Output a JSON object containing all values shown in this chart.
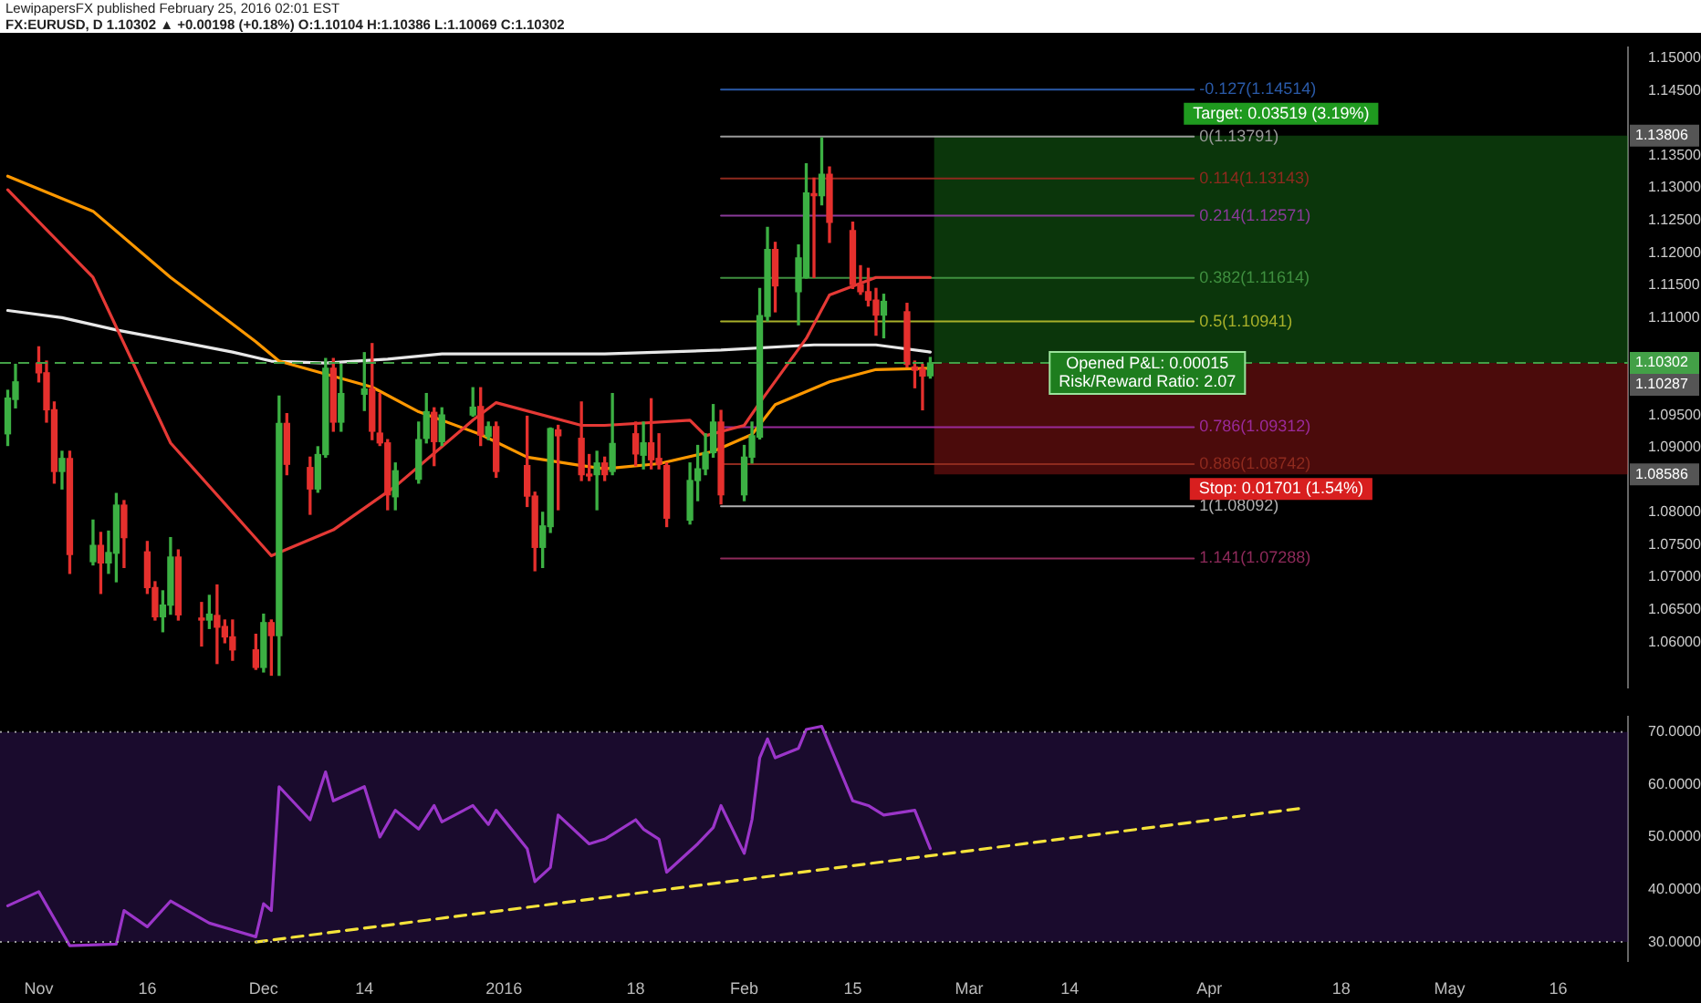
{
  "chart_data": [
    {
      "type": "candlestick",
      "title": "FX:EURUSD, D 1.10302 ▲ +0.00198 (+0.18%) O:1.10104 H:1.10386 L:1.10069 C:1.10302",
      "subtitle": "LewipapersFX published February 25, 2016 02:01 EST",
      "x": [
        "2015-10-29",
        "2015-10-30",
        "2015-11-02",
        "2015-11-03",
        "2015-11-04",
        "2015-11-05",
        "2015-11-06",
        "2015-11-09",
        "2015-11-10",
        "2015-11-11",
        "2015-11-12",
        "2015-11-13",
        "2015-11-16",
        "2015-11-17",
        "2015-11-18",
        "2015-11-19",
        "2015-11-20",
        "2015-11-23",
        "2015-11-24",
        "2015-11-25",
        "2015-11-26",
        "2015-11-27",
        "2015-11-30",
        "2015-12-01",
        "2015-12-02",
        "2015-12-03",
        "2015-12-04",
        "2015-12-07",
        "2015-12-08",
        "2015-12-09",
        "2015-12-10",
        "2015-12-11",
        "2015-12-14",
        "2015-12-15",
        "2015-12-16",
        "2015-12-17",
        "2015-12-18",
        "2015-12-21",
        "2015-12-22",
        "2015-12-23",
        "2015-12-24",
        "2015-12-28",
        "2015-12-29",
        "2015-12-30",
        "2015-12-31",
        "2016-01-04",
        "2016-01-05",
        "2016-01-06",
        "2016-01-07",
        "2016-01-08",
        "2016-01-11",
        "2016-01-12",
        "2016-01-13",
        "2016-01-14",
        "2016-01-15",
        "2016-01-18",
        "2016-01-19",
        "2016-01-20",
        "2016-01-21",
        "2016-01-22",
        "2016-01-25",
        "2016-01-26",
        "2016-01-27",
        "2016-01-28",
        "2016-01-29",
        "2016-02-01",
        "2016-02-02",
        "2016-02-03",
        "2016-02-04",
        "2016-02-05",
        "2016-02-08",
        "2016-02-09",
        "2016-02-10",
        "2016-02-11",
        "2016-02-12",
        "2016-02-15",
        "2016-02-16",
        "2016-02-17",
        "2016-02-18",
        "2016-02-19",
        "2016-02-22",
        "2016-02-23",
        "2016-02-24",
        "2016-02-25"
      ],
      "ohlc": [
        [
          1.0921,
          1.0988,
          1.0903,
          1.0976
        ],
        [
          1.0974,
          1.1028,
          1.0961,
          1.1001
        ],
        [
          1.103,
          1.1055,
          1.1001,
          1.1015
        ],
        [
          1.1015,
          1.1033,
          1.0939,
          1.0958
        ],
        [
          1.0958,
          1.097,
          1.0845,
          1.0863
        ],
        [
          1.0863,
          1.0894,
          1.0836,
          1.0883
        ],
        [
          1.0883,
          1.0894,
          1.0706,
          1.0735
        ],
        [
          1.0724,
          1.0788,
          1.0719,
          1.0749
        ],
        [
          1.0749,
          1.0769,
          1.0675,
          1.0722
        ],
        [
          1.0722,
          1.0771,
          1.0706,
          1.0738
        ],
        [
          1.0737,
          1.0829,
          1.0693,
          1.0811
        ],
        [
          1.0811,
          1.0818,
          1.0715,
          1.0761
        ],
        [
          1.0739,
          1.0755,
          1.0675,
          1.0684
        ],
        [
          1.0684,
          1.0693,
          1.0634,
          1.0639
        ],
        [
          1.0639,
          1.0679,
          1.0616,
          1.0657
        ],
        [
          1.0657,
          1.0761,
          1.0643,
          1.0731
        ],
        [
          1.0731,
          1.0742,
          1.0634,
          1.0642
        ],
        [
          1.0637,
          1.0661,
          1.0594,
          1.0634
        ],
        [
          1.0634,
          1.0672,
          1.0621,
          1.0643
        ],
        [
          1.0641,
          1.0688,
          1.0567,
          1.0623
        ],
        [
          1.0624,
          1.0634,
          1.0599,
          1.0608
        ],
        [
          1.0608,
          1.0634,
          1.0572,
          1.0588
        ],
        [
          1.0588,
          1.0612,
          1.0558,
          1.0561
        ],
        [
          1.0561,
          1.0643,
          1.0554,
          1.063
        ],
        [
          1.063,
          1.0634,
          1.0549,
          1.061
        ],
        [
          1.061,
          1.0979,
          1.0549,
          1.0937
        ],
        [
          1.0937,
          1.0952,
          1.0858,
          1.0874
        ],
        [
          1.0869,
          1.0885,
          1.0797,
          1.0836
        ],
        [
          1.0836,
          1.0901,
          1.0831,
          1.0889
        ],
        [
          1.0889,
          1.1037,
          1.0885,
          1.1022
        ],
        [
          1.1022,
          1.1037,
          1.0925,
          1.0939
        ],
        [
          1.0939,
          1.1028,
          1.0925,
          1.0983
        ],
        [
          1.0982,
          1.1046,
          1.0957,
          1.099
        ],
        [
          1.099,
          1.106,
          1.0912,
          1.0925
        ],
        [
          1.0922,
          1.0983,
          1.0903,
          1.0907
        ],
        [
          1.0907,
          1.0912,
          1.0804,
          1.0827
        ],
        [
          1.0824,
          1.0876,
          1.0804,
          1.0864
        ],
        [
          1.0851,
          1.0939,
          1.0845,
          1.0912
        ],
        [
          1.0914,
          1.0983,
          1.0907,
          1.0955
        ],
        [
          1.0954,
          1.0961,
          1.0872,
          1.0909
        ],
        [
          1.0909,
          1.0961,
          1.0903,
          1.095
        ],
        [
          1.095,
          1.0992,
          1.0948,
          1.0962
        ],
        [
          1.0963,
          1.0992,
          1.0903,
          1.0919
        ],
        [
          1.0917,
          1.0939,
          1.0912,
          1.0932
        ],
        [
          1.0932,
          1.0939,
          1.0854,
          1.0863
        ],
        [
          1.0872,
          1.0948,
          1.0809,
          1.0825
        ],
        [
          1.0825,
          1.0831,
          1.071,
          1.0746
        ],
        [
          1.0746,
          1.08,
          1.0715,
          1.0779
        ],
        [
          1.0778,
          1.093,
          1.0769,
          1.0929
        ],
        [
          1.0927,
          1.0934,
          1.0804,
          1.0918
        ],
        [
          1.0914,
          1.097,
          1.0849,
          1.0858
        ],
        [
          1.0858,
          1.0889,
          1.0849,
          1.0856
        ],
        [
          1.0858,
          1.0894,
          1.0804,
          1.0876
        ],
        [
          1.0876,
          1.0885,
          1.0849,
          1.0858
        ],
        [
          1.0863,
          1.0983,
          1.0858,
          1.0906
        ],
        [
          1.0921,
          1.0939,
          1.0872,
          1.089
        ],
        [
          1.0888,
          1.0939,
          1.0867,
          1.0907
        ],
        [
          1.0907,
          1.0975,
          1.0867,
          1.0881
        ],
        [
          1.0883,
          1.0921,
          1.0867,
          1.0874
        ],
        [
          1.0872,
          1.0876,
          1.0778,
          1.0791
        ],
        [
          1.0788,
          1.0876,
          1.0782,
          1.0849
        ],
        [
          1.0849,
          1.0903,
          1.0818,
          1.0867
        ],
        [
          1.0867,
          1.0921,
          1.0858,
          1.0892
        ],
        [
          1.0892,
          1.0966,
          1.0885,
          1.0939
        ],
        [
          1.0939,
          1.0957,
          1.0813,
          1.0827
        ],
        [
          1.0827,
          1.0903,
          1.0818,
          1.0885
        ],
        [
          1.0885,
          1.0939,
          1.0876,
          1.0918
        ],
        [
          1.0916,
          1.1145,
          1.0913,
          1.1103
        ],
        [
          1.1102,
          1.1239,
          1.1095,
          1.1205
        ],
        [
          1.1205,
          1.1216,
          1.1109,
          1.1149
        ],
        [
          1.114,
          1.1212,
          1.1089,
          1.1192
        ],
        [
          1.1162,
          1.1337,
          1.1161,
          1.1292
        ],
        [
          1.1291,
          1.1315,
          1.1162,
          1.1288
        ],
        [
          1.1288,
          1.1377,
          1.1274,
          1.1321
        ],
        [
          1.1321,
          1.1332,
          1.1216,
          1.1247
        ],
        [
          1.1234,
          1.1247,
          1.1145,
          1.1151
        ],
        [
          1.1151,
          1.118,
          1.1136,
          1.114
        ],
        [
          1.114,
          1.1176,
          1.1118,
          1.1127
        ],
        [
          1.1127,
          1.1145,
          1.1073,
          1.1104
        ],
        [
          1.1104,
          1.1136,
          1.1069,
          1.1125
        ],
        [
          1.1109,
          1.1122,
          1.1024,
          1.1028
        ],
        [
          1.1024,
          1.1033,
          1.0992,
          1.1019
        ],
        [
          1.1021,
          1.1028,
          1.0958,
          1.101
        ],
        [
          1.10104,
          1.10386,
          1.10069,
          1.10302
        ]
      ],
      "colors": [
        "#3cb043",
        "#3cb043",
        "#e5302d",
        "#e5302d",
        "#e5302d",
        "#3cb043",
        "#e5302d",
        "#3cb043",
        "#e5302d",
        "#3cb043",
        "#3cb043",
        "#e5302d",
        "#e5302d",
        "#e5302d",
        "#3cb043",
        "#3cb043",
        "#e5302d",
        "#e5302d",
        "#3cb043",
        "#e5302d",
        "#e5302d",
        "#e5302d",
        "#e5302d",
        "#3cb043",
        "#e5302d",
        "#3cb043",
        "#e5302d",
        "#e5302d",
        "#3cb043",
        "#3cb043",
        "#e5302d",
        "#3cb043",
        "#3cb043",
        "#e5302d",
        "#e5302d",
        "#e5302d",
        "#3cb043",
        "#3cb043",
        "#3cb043",
        "#e5302d",
        "#3cb043",
        "#3cb043",
        "#e5302d",
        "#3cb043",
        "#e5302d",
        "#e5302d",
        "#e5302d",
        "#3cb043",
        "#3cb043",
        "#e5302d",
        "#e5302d",
        "#e5302d",
        "#3cb043",
        "#e5302d",
        "#3cb043",
        "#e5302d",
        "#3cb043",
        "#e5302d",
        "#e5302d",
        "#e5302d",
        "#3cb043",
        "#3cb043",
        "#3cb043",
        "#3cb043",
        "#e5302d",
        "#3cb043",
        "#3cb043",
        "#3cb043",
        "#3cb043",
        "#e5302d",
        "#3cb043",
        "#3cb043",
        "#e5302d",
        "#3cb043",
        "#e5302d",
        "#e5302d",
        "#e5302d",
        "#e5302d",
        "#e5302d",
        "#3cb043",
        "#e5302d",
        "#e5302d",
        "#e5302d",
        "#3cb043"
      ],
      "series": [
        {
          "type": "line",
          "color": "#e53935",
          "x": [
            "2015-10-29",
            "2015-11-09",
            "2015-11-19",
            "2015-12-02",
            "2015-12-10",
            "2015-12-18",
            "2015-12-28",
            "2015-12-31",
            "2016-01-11",
            "2016-01-14",
            "2016-01-25",
            "2016-01-27",
            "2016-02-01",
            "2016-02-03",
            "2016-02-09",
            "2016-02-12",
            "2016-02-18",
            "2016-02-25"
          ],
          "values": [
            1.1297,
            1.1162,
            1.0907,
            1.0733,
            1.0773,
            1.084,
            1.0942,
            1.0969,
            1.0934,
            1.0934,
            1.0942,
            1.0918,
            1.0934,
            1.0969,
            1.1068,
            1.1135,
            1.1162,
            1.1162
          ]
        },
        {
          "type": "line",
          "color": "#ff9800",
          "x": [
            "2015-10-29",
            "2015-11-09",
            "2015-11-19",
            "2015-11-30",
            "2015-12-03",
            "2015-12-15",
            "2015-12-21",
            "2015-12-29",
            "2016-01-04",
            "2016-01-11",
            "2016-01-14",
            "2016-01-21",
            "2016-01-28",
            "2016-02-02",
            "2016-02-05",
            "2016-02-12",
            "2016-02-18",
            "2016-02-25"
          ],
          "values": [
            1.1318,
            1.1264,
            1.1162,
            1.1063,
            1.1033,
            1.0993,
            1.0955,
            1.092,
            1.0885,
            1.0872,
            1.0867,
            1.0875,
            1.0894,
            1.092,
            1.0966,
            1.1001,
            1.102,
            1.1022
          ]
        },
        {
          "type": "line",
          "color": "#e8e8e8",
          "x": [
            "2015-10-29",
            "2015-11-05",
            "2015-11-12",
            "2015-11-20",
            "2015-11-27",
            "2015-12-02",
            "2015-12-09",
            "2015-12-17",
            "2015-12-24",
            "2016-01-14",
            "2016-01-29",
            "2016-02-10",
            "2016-02-18",
            "2016-02-25"
          ],
          "values": [
            1.1111,
            1.11,
            1.1081,
            1.1063,
            1.1047,
            1.1033,
            1.103,
            1.1036,
            1.1044,
            1.1044,
            1.105,
            1.1058,
            1.1058,
            1.1047
          ]
        },
        {
          "type": "line",
          "name": "-0.127(1.14514)",
          "color": "#2a5aa8",
          "x": [
            "2016-01-29",
            "2016-03-30"
          ],
          "values": [
            1.14514,
            1.14514
          ]
        },
        {
          "type": "line",
          "name": "0(1.13791)",
          "color": "#9a9a9a",
          "x": [
            "2016-01-29",
            "2016-03-30"
          ],
          "values": [
            1.13791,
            1.13791
          ]
        },
        {
          "type": "line",
          "name": "0.114(1.13143)",
          "color": "#8e2a1e",
          "x": [
            "2016-01-29",
            "2016-03-30"
          ],
          "values": [
            1.13143,
            1.13143
          ]
        },
        {
          "type": "line",
          "name": "0.214(1.12571)",
          "color": "#8a3a9a",
          "x": [
            "2016-01-29",
            "2016-03-30"
          ],
          "values": [
            1.12571,
            1.12571
          ]
        },
        {
          "type": "line",
          "name": "0.382(1.11614)",
          "color": "#3f8f3f",
          "x": [
            "2016-01-29",
            "2016-03-30"
          ],
          "values": [
            1.11614,
            1.11614
          ]
        },
        {
          "type": "line",
          "name": "0.5(1.10941)",
          "color": "#a8b02a",
          "x": [
            "2016-01-29",
            "2016-03-30"
          ],
          "values": [
            1.10941,
            1.10941
          ]
        },
        {
          "type": "line",
          "name": "0.786(1.09312)",
          "color": "#9a2a9a",
          "x": [
            "2016-01-29",
            "2016-03-30"
          ],
          "values": [
            1.09312,
            1.09312
          ]
        },
        {
          "type": "line",
          "name": "0.886(1.08742)",
          "color": "#8e2a1e",
          "x": [
            "2016-01-29",
            "2016-03-30"
          ],
          "values": [
            1.08742,
            1.08742
          ]
        },
        {
          "type": "line",
          "name": "1(1.08092)",
          "color": "#b0b0b0",
          "x": [
            "2016-01-29",
            "2016-03-30"
          ],
          "values": [
            1.08092,
            1.08092
          ]
        },
        {
          "type": "line",
          "name": "1.141(1.07288)",
          "color": "#8e2a5a",
          "x": [
            "2016-01-29",
            "2016-03-30"
          ],
          "values": [
            1.07288,
            1.07288
          ]
        }
      ],
      "xlim": [
        "2015-10-28",
        "2016-05-25"
      ],
      "ylim": [
        1.053,
        1.1517
      ],
      "yticks": [
        {
          "value": 1.06,
          "label": "1.06000"
        },
        {
          "value": 1.065,
          "label": "1.06500"
        },
        {
          "value": 1.07,
          "label": "1.07000"
        },
        {
          "value": 1.075,
          "label": "1.07500"
        },
        {
          "value": 1.08,
          "label": "1.08000"
        },
        {
          "value": 1.09,
          "label": "1.09000"
        },
        {
          "value": 1.095,
          "label": "1.09500"
        },
        {
          "value": 1.11,
          "label": "1.11000"
        },
        {
          "value": 1.115,
          "label": "1.11500"
        },
        {
          "value": 1.12,
          "label": "1.12000"
        },
        {
          "value": 1.125,
          "label": "1.12500"
        },
        {
          "value": 1.13,
          "label": "1.13000"
        },
        {
          "value": 1.135,
          "label": "1.13500"
        },
        {
          "value": 1.145,
          "label": "1.14500"
        },
        {
          "value": 1.15,
          "label": "1.15000"
        }
      ],
      "tick_labels": "y",
      "ref_lines": [
        {
          "axis": "y",
          "value": 1.10302,
          "label": "1.10302",
          "color": "#43a047",
          "line_style": "dashed"
        }
      ],
      "bands": [
        {
          "axis": "y",
          "from": 1.10302,
          "to": 1.13806,
          "label": "Target: 0.03519 (3.19%)",
          "color": "#1f9a1f"
        },
        {
          "axis": "y",
          "from": 1.10302,
          "to": 1.08586,
          "label": "Stop: 0.01701 (1.54%)",
          "color": "#d81f1f"
        }
      ],
      "annotations": [
        {
          "text": "Opened P&L: 0.00015\nRisk/Reward Ratio: 2.07",
          "x": "2016-03-24",
          "y": 1.10302
        },
        {
          "text": "1.13806",
          "y": 1.13806
        },
        {
          "text": "1.10287",
          "y": 1.10287
        },
        {
          "text": "1.08586",
          "y": 1.08586
        }
      ],
      "grid": false,
      "legend": false
    },
    {
      "type": "line",
      "series": [
        {
          "color": "#9b35c9",
          "x": [
            "2015-10-29",
            "2015-11-02",
            "2015-11-06",
            "2015-11-12",
            "2015-11-13",
            "2015-11-16",
            "2015-11-19",
            "2015-11-24",
            "2015-11-30",
            "2015-12-01",
            "2015-12-02",
            "2015-12-03",
            "2015-12-07",
            "2015-12-09",
            "2015-12-10",
            "2015-12-14",
            "2015-12-16",
            "2015-12-18",
            "2015-12-21",
            "2015-12-23",
            "2015-12-24",
            "2015-12-28",
            "2015-12-30",
            "2015-12-31",
            "2016-01-04",
            "2016-01-05",
            "2016-01-07",
            "2016-01-08",
            "2016-01-12",
            "2016-01-14",
            "2016-01-15",
            "2016-01-18",
            "2016-01-19",
            "2016-01-21",
            "2016-01-22",
            "2016-01-26",
            "2016-01-28",
            "2016-01-29",
            "2016-02-01",
            "2016-02-02",
            "2016-02-03",
            "2016-02-04",
            "2016-02-05",
            "2016-02-08",
            "2016-02-09",
            "2016-02-11",
            "2016-02-15",
            "2016-02-17",
            "2016-02-19",
            "2016-02-23",
            "2016-02-25"
          ],
          "values": [
            36.9,
            39.6,
            29.3,
            29.6,
            36.0,
            32.9,
            37.8,
            33.6,
            31.0,
            37.3,
            36.0,
            59.6,
            53.3,
            62.4,
            56.9,
            59.6,
            50.0,
            55.1,
            51.5,
            56.0,
            52.9,
            56.0,
            52.4,
            55.1,
            47.8,
            41.5,
            44.2,
            54.2,
            48.7,
            49.6,
            50.5,
            53.3,
            51.5,
            49.6,
            43.3,
            48.7,
            51.8,
            56.0,
            46.9,
            53.3,
            65.1,
            68.7,
            65.1,
            66.9,
            70.5,
            71.1,
            56.9,
            56.0,
            54.2,
            55.1,
            47.8
          ]
        },
        {
          "type": "line",
          "line_style": "dashed",
          "color": "#f5e33a",
          "x": [
            "2015-11-30",
            "2016-04-13"
          ],
          "values": [
            30.0,
            55.5
          ]
        }
      ],
      "xlim": [
        "2015-10-28",
        "2016-05-25"
      ],
      "xticks": [
        {
          "value": "2015-11-02",
          "label": "Nov"
        },
        {
          "value": "2015-11-16",
          "label": "16"
        },
        {
          "value": "2015-12-01",
          "label": "Dec"
        },
        {
          "value": "2015-12-14",
          "label": "14"
        },
        {
          "value": "2016-01-01",
          "label": "2016"
        },
        {
          "value": "2016-01-18",
          "label": "18"
        },
        {
          "value": "2016-02-01",
          "label": "Feb"
        },
        {
          "value": "2016-02-15",
          "label": "15"
        },
        {
          "value": "2016-03-01",
          "label": "Mar"
        },
        {
          "value": "2016-03-14",
          "label": "14"
        },
        {
          "value": "2016-04-01",
          "label": "Apr"
        },
        {
          "value": "2016-04-18",
          "label": "18"
        },
        {
          "value": "2016-05-02",
          "label": "May"
        },
        {
          "value": "2016-05-16",
          "label": "16"
        }
      ],
      "ylim": [
        26.3,
        73
      ],
      "yticks": [
        {
          "value": 30,
          "label": "30.0000"
        },
        {
          "value": 40,
          "label": "40.0000"
        },
        {
          "value": 50,
          "label": "50.0000"
        },
        {
          "value": 60,
          "label": "60.0000"
        },
        {
          "value": 70,
          "label": "70.0000"
        }
      ],
      "ref_lines": [
        {
          "axis": "y",
          "value": 70,
          "color": "#9a9a9a",
          "line_style": "dotted"
        },
        {
          "axis": "y",
          "value": 30,
          "color": "#9a9a9a",
          "line_style": "dotted"
        }
      ],
      "bands": [
        {
          "axis": "y",
          "from": 30,
          "to": 70,
          "color": "#4a2080"
        }
      ],
      "grid": false,
      "legend": false
    }
  ]
}
